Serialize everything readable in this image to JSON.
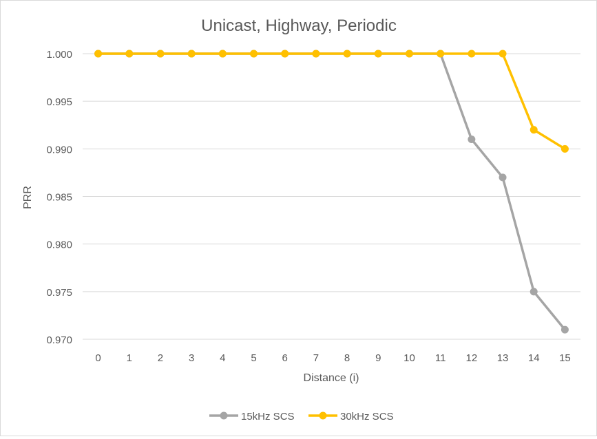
{
  "chart_data": {
    "type": "line",
    "title": "Unicast, Highway, Periodic",
    "xlabel": "Distance (i)",
    "ylabel": "PRR",
    "categories": [
      "0",
      "1",
      "2",
      "3",
      "4",
      "5",
      "6",
      "7",
      "8",
      "9",
      "10",
      "11",
      "12",
      "13",
      "14",
      "15"
    ],
    "ylim": [
      0.97,
      1.0
    ],
    "yticks": [
      "0.970",
      "0.975",
      "0.980",
      "0.985",
      "0.990",
      "0.995",
      "1.000"
    ],
    "grid": "horizontal",
    "legend_position": "bottom",
    "series": [
      {
        "name": "15kHz SCS",
        "color": "#a5a5a5",
        "values": [
          1.0,
          1.0,
          1.0,
          1.0,
          1.0,
          1.0,
          1.0,
          1.0,
          1.0,
          1.0,
          1.0,
          1.0,
          0.991,
          0.987,
          0.975,
          0.971
        ]
      },
      {
        "name": "30kHz SCS",
        "color": "#ffc000",
        "values": [
          1.0,
          1.0,
          1.0,
          1.0,
          1.0,
          1.0,
          1.0,
          1.0,
          1.0,
          1.0,
          1.0,
          1.0,
          1.0,
          1.0,
          0.992,
          0.99
        ]
      }
    ]
  }
}
